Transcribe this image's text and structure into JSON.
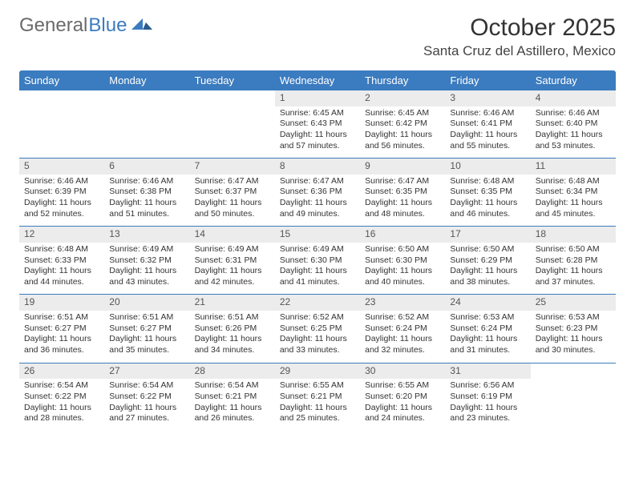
{
  "logo": {
    "text1": "General",
    "text2": "Blue"
  },
  "title": "October 2025",
  "location": "Santa Cruz del Astillero, Mexico",
  "colors": {
    "accent": "#3b7bbf",
    "daynum_bg": "#ececec"
  },
  "weekdays": [
    "Sunday",
    "Monday",
    "Tuesday",
    "Wednesday",
    "Thursday",
    "Friday",
    "Saturday"
  ],
  "labels": {
    "sunrise": "Sunrise:",
    "sunset": "Sunset:",
    "daylight": "Daylight:"
  },
  "weeks": [
    [
      null,
      null,
      null,
      {
        "d": "1",
        "sr": "6:45 AM",
        "ss": "6:43 PM",
        "dl": "11 hours and 57 minutes."
      },
      {
        "d": "2",
        "sr": "6:45 AM",
        "ss": "6:42 PM",
        "dl": "11 hours and 56 minutes."
      },
      {
        "d": "3",
        "sr": "6:46 AM",
        "ss": "6:41 PM",
        "dl": "11 hours and 55 minutes."
      },
      {
        "d": "4",
        "sr": "6:46 AM",
        "ss": "6:40 PM",
        "dl": "11 hours and 53 minutes."
      }
    ],
    [
      {
        "d": "5",
        "sr": "6:46 AM",
        "ss": "6:39 PM",
        "dl": "11 hours and 52 minutes."
      },
      {
        "d": "6",
        "sr": "6:46 AM",
        "ss": "6:38 PM",
        "dl": "11 hours and 51 minutes."
      },
      {
        "d": "7",
        "sr": "6:47 AM",
        "ss": "6:37 PM",
        "dl": "11 hours and 50 minutes."
      },
      {
        "d": "8",
        "sr": "6:47 AM",
        "ss": "6:36 PM",
        "dl": "11 hours and 49 minutes."
      },
      {
        "d": "9",
        "sr": "6:47 AM",
        "ss": "6:35 PM",
        "dl": "11 hours and 48 minutes."
      },
      {
        "d": "10",
        "sr": "6:48 AM",
        "ss": "6:35 PM",
        "dl": "11 hours and 46 minutes."
      },
      {
        "d": "11",
        "sr": "6:48 AM",
        "ss": "6:34 PM",
        "dl": "11 hours and 45 minutes."
      }
    ],
    [
      {
        "d": "12",
        "sr": "6:48 AM",
        "ss": "6:33 PM",
        "dl": "11 hours and 44 minutes."
      },
      {
        "d": "13",
        "sr": "6:49 AM",
        "ss": "6:32 PM",
        "dl": "11 hours and 43 minutes."
      },
      {
        "d": "14",
        "sr": "6:49 AM",
        "ss": "6:31 PM",
        "dl": "11 hours and 42 minutes."
      },
      {
        "d": "15",
        "sr": "6:49 AM",
        "ss": "6:30 PM",
        "dl": "11 hours and 41 minutes."
      },
      {
        "d": "16",
        "sr": "6:50 AM",
        "ss": "6:30 PM",
        "dl": "11 hours and 40 minutes."
      },
      {
        "d": "17",
        "sr": "6:50 AM",
        "ss": "6:29 PM",
        "dl": "11 hours and 38 minutes."
      },
      {
        "d": "18",
        "sr": "6:50 AM",
        "ss": "6:28 PM",
        "dl": "11 hours and 37 minutes."
      }
    ],
    [
      {
        "d": "19",
        "sr": "6:51 AM",
        "ss": "6:27 PM",
        "dl": "11 hours and 36 minutes."
      },
      {
        "d": "20",
        "sr": "6:51 AM",
        "ss": "6:27 PM",
        "dl": "11 hours and 35 minutes."
      },
      {
        "d": "21",
        "sr": "6:51 AM",
        "ss": "6:26 PM",
        "dl": "11 hours and 34 minutes."
      },
      {
        "d": "22",
        "sr": "6:52 AM",
        "ss": "6:25 PM",
        "dl": "11 hours and 33 minutes."
      },
      {
        "d": "23",
        "sr": "6:52 AM",
        "ss": "6:24 PM",
        "dl": "11 hours and 32 minutes."
      },
      {
        "d": "24",
        "sr": "6:53 AM",
        "ss": "6:24 PM",
        "dl": "11 hours and 31 minutes."
      },
      {
        "d": "25",
        "sr": "6:53 AM",
        "ss": "6:23 PM",
        "dl": "11 hours and 30 minutes."
      }
    ],
    [
      {
        "d": "26",
        "sr": "6:54 AM",
        "ss": "6:22 PM",
        "dl": "11 hours and 28 minutes."
      },
      {
        "d": "27",
        "sr": "6:54 AM",
        "ss": "6:22 PM",
        "dl": "11 hours and 27 minutes."
      },
      {
        "d": "28",
        "sr": "6:54 AM",
        "ss": "6:21 PM",
        "dl": "11 hours and 26 minutes."
      },
      {
        "d": "29",
        "sr": "6:55 AM",
        "ss": "6:21 PM",
        "dl": "11 hours and 25 minutes."
      },
      {
        "d": "30",
        "sr": "6:55 AM",
        "ss": "6:20 PM",
        "dl": "11 hours and 24 minutes."
      },
      {
        "d": "31",
        "sr": "6:56 AM",
        "ss": "6:19 PM",
        "dl": "11 hours and 23 minutes."
      },
      null
    ]
  ]
}
